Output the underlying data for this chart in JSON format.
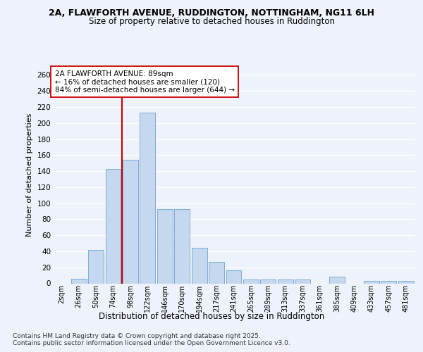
{
  "title": "2A, FLAWFORTH AVENUE, RUDDINGTON, NOTTINGHAM, NG11 6LH",
  "subtitle": "Size of property relative to detached houses in Ruddington",
  "xlabel": "Distribution of detached houses by size in Ruddington",
  "ylabel": "Number of detached properties",
  "categories": [
    "2sqm",
    "26sqm",
    "50sqm",
    "74sqm",
    "98sqm",
    "122sqm",
    "146sqm",
    "170sqm",
    "194sqm",
    "217sqm",
    "241sqm",
    "265sqm",
    "289sqm",
    "313sqm",
    "337sqm",
    "361sqm",
    "385sqm",
    "409sqm",
    "433sqm",
    "457sqm",
    "481sqm"
  ],
  "values": [
    0,
    6,
    42,
    143,
    154,
    213,
    93,
    93,
    44,
    27,
    16,
    5,
    5,
    5,
    5,
    0,
    8,
    0,
    3,
    3,
    3
  ],
  "bar_color": "#c5d8f0",
  "bar_edge_color": "#7aafd4",
  "background_color": "#eef2fa",
  "grid_color": "#ffffff",
  "vline_x_index": 4,
  "vline_color": "#cc0000",
  "annotation_line1": "2A FLAWFORTH AVENUE: 89sqm",
  "annotation_line2": "← 16% of detached houses are smaller (120)",
  "annotation_line3": "84% of semi-detached houses are larger (644) →",
  "annotation_box_facecolor": "#ffffff",
  "annotation_box_edgecolor": "#cc0000",
  "footer_text": "Contains HM Land Registry data © Crown copyright and database right 2025.\nContains public sector information licensed under the Open Government Licence v3.0.",
  "ylim": [
    0,
    270
  ],
  "yticks": [
    0,
    20,
    40,
    60,
    80,
    100,
    120,
    140,
    160,
    180,
    200,
    220,
    240,
    260
  ]
}
